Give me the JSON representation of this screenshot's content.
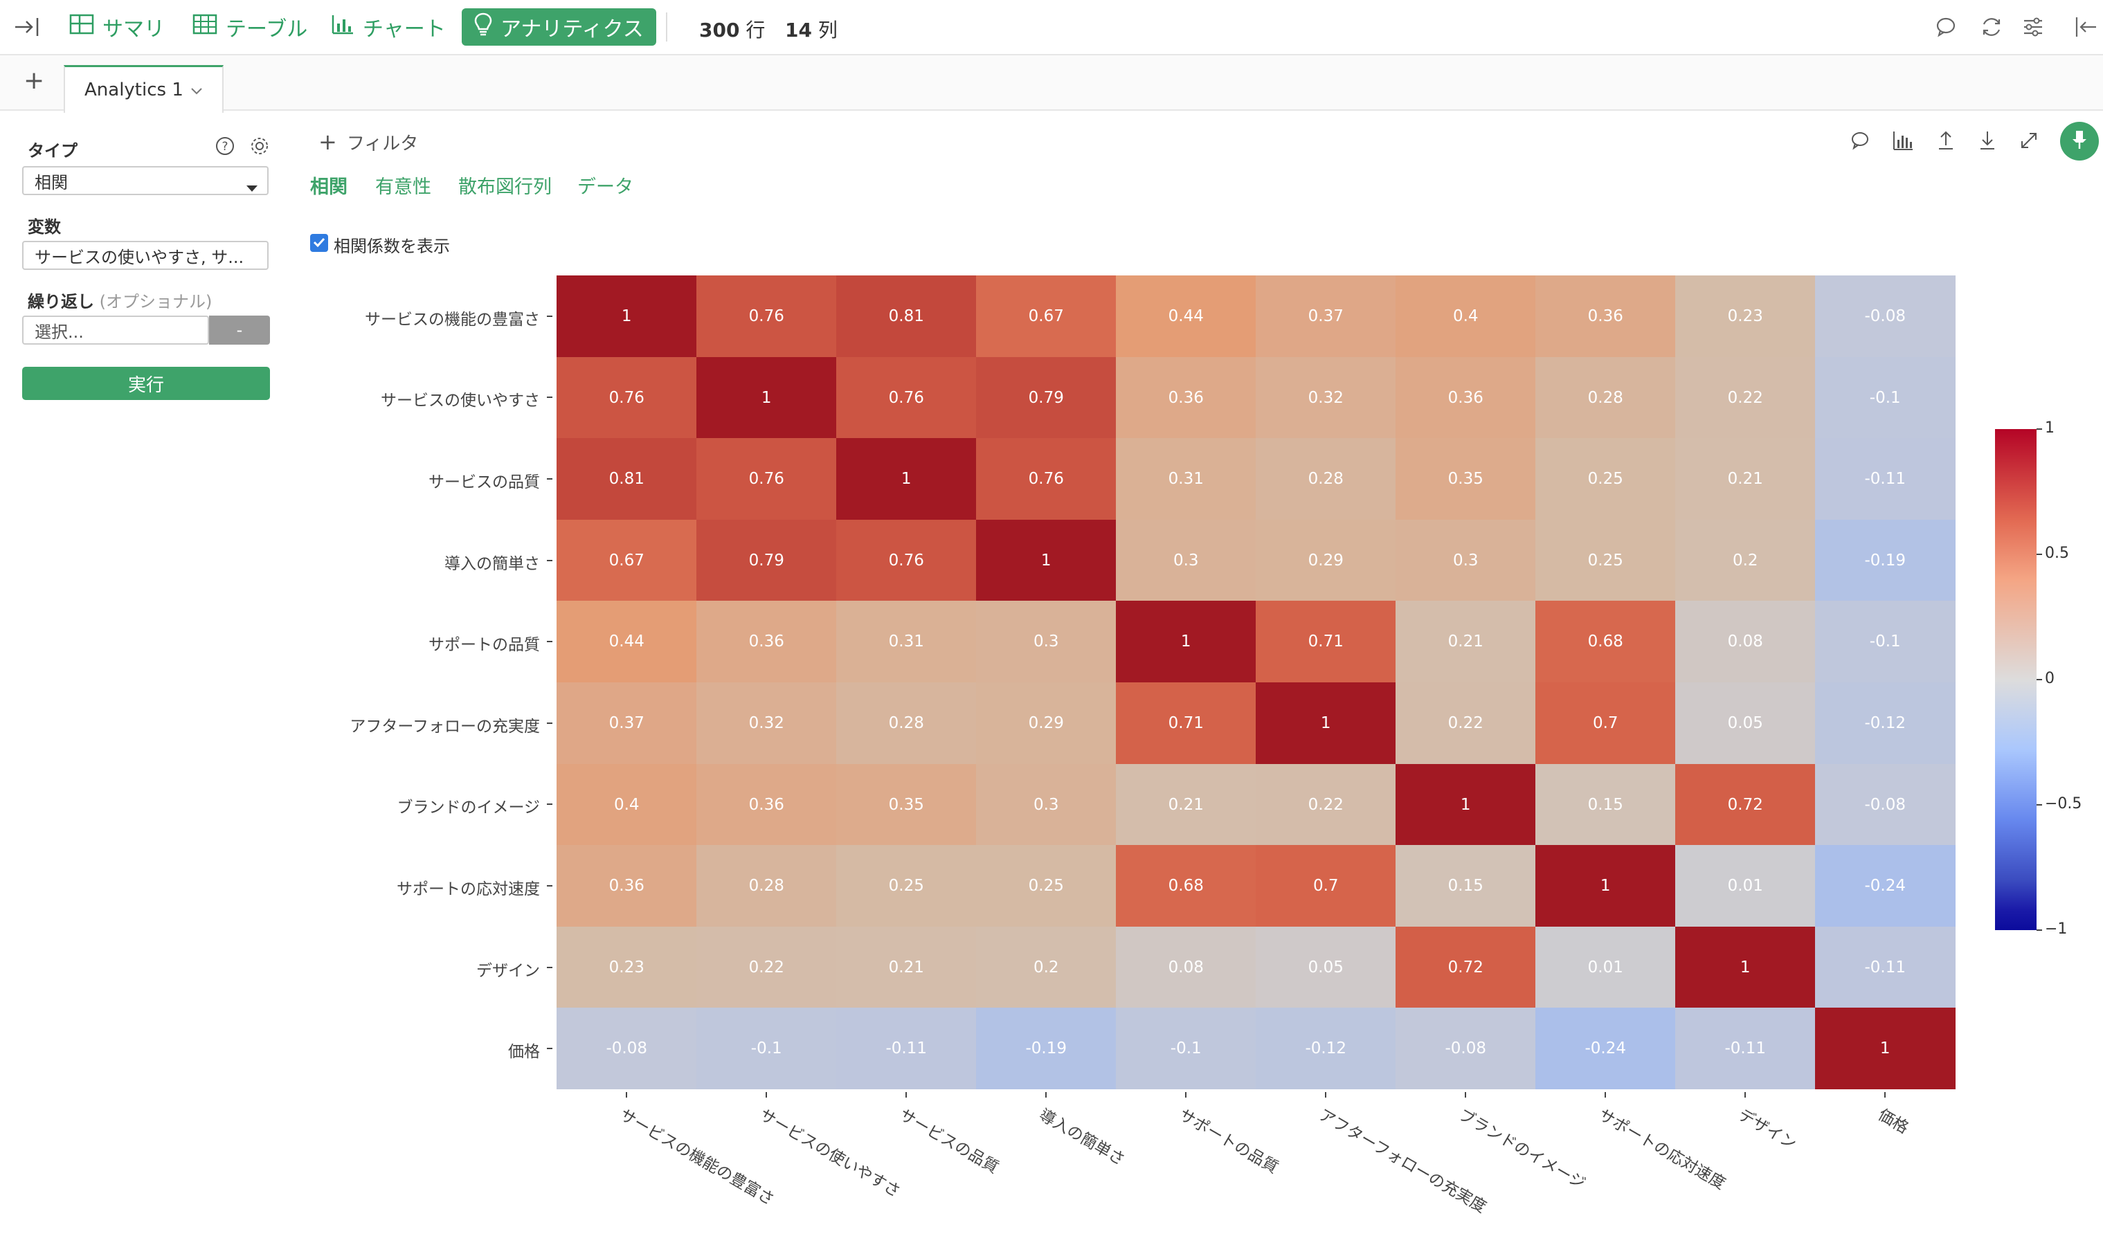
{
  "topbar": {
    "nav": [
      {
        "label": "サマリ",
        "icon": "table-icon"
      },
      {
        "label": "テーブル",
        "icon": "grid-icon"
      },
      {
        "label": "チャート",
        "icon": "bar-chart-icon"
      },
      {
        "label": "アナリティクス",
        "icon": "lightbulb-icon"
      }
    ],
    "rows_count": "300",
    "rows_unit": "行",
    "cols_count": "14",
    "cols_unit": "列"
  },
  "tabs": {
    "add_label": "+",
    "active_tab": "Analytics 1"
  },
  "sidebar": {
    "type_label": "タイプ",
    "type_value": "相関",
    "variables_label": "変数",
    "variables_value": "サービスの使いやすさ, サ...",
    "repeat_label": "繰り返し",
    "repeat_optional": "(オプショナル)",
    "repeat_placeholder": "選択...",
    "repeat_button": "-",
    "run_label": "実行"
  },
  "main": {
    "filter_label": "フィルタ",
    "subtabs": [
      "相関",
      "有意性",
      "散布図行列",
      "データ"
    ],
    "show_coef_label": "相関係数を表示",
    "show_coef_checked": true
  },
  "chart_data": {
    "type": "heatmap",
    "variables": [
      "サービスの機能の豊富さ",
      "サービスの使いやすさ",
      "サービスの品質",
      "導入の簡単さ",
      "サポートの品質",
      "アフターフォローの充実度",
      "ブランドのイメージ",
      "サポートの応対速度",
      "デザイン",
      "価格"
    ],
    "matrix": [
      [
        1,
        0.76,
        0.81,
        0.67,
        0.44,
        0.37,
        0.4,
        0.36,
        0.23,
        -0.08
      ],
      [
        0.76,
        1,
        0.76,
        0.79,
        0.36,
        0.32,
        0.36,
        0.28,
        0.22,
        -0.1
      ],
      [
        0.81,
        0.76,
        1,
        0.76,
        0.31,
        0.28,
        0.35,
        0.25,
        0.21,
        -0.11
      ],
      [
        0.67,
        0.79,
        0.76,
        1,
        0.3,
        0.29,
        0.3,
        0.25,
        0.2,
        -0.19
      ],
      [
        0.44,
        0.36,
        0.31,
        0.3,
        1,
        0.71,
        0.21,
        0.68,
        0.08,
        -0.1
      ],
      [
        0.37,
        0.32,
        0.28,
        0.29,
        0.71,
        1,
        0.22,
        0.7,
        0.05,
        -0.12
      ],
      [
        0.4,
        0.36,
        0.35,
        0.3,
        0.21,
        0.22,
        1,
        0.15,
        0.72,
        -0.08
      ],
      [
        0.36,
        0.28,
        0.25,
        0.25,
        0.68,
        0.7,
        0.15,
        1,
        0.01,
        -0.24
      ],
      [
        0.23,
        0.22,
        0.21,
        0.2,
        0.08,
        0.05,
        0.72,
        0.01,
        1,
        -0.11
      ],
      [
        -0.08,
        -0.1,
        -0.11,
        -0.19,
        -0.1,
        -0.12,
        -0.08,
        -0.24,
        -0.11,
        1
      ]
    ],
    "colorscale": "coolwarm",
    "zlim": [
      -1,
      1
    ],
    "colorbar_ticks": [
      "1",
      "0.5",
      "0",
      "−0.5",
      "−1"
    ]
  }
}
